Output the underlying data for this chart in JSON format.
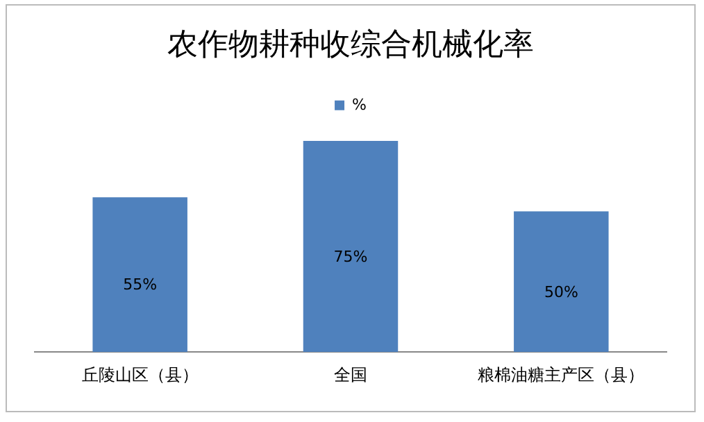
{
  "chart_data": {
    "type": "bar",
    "title": "农作物耕种收综合机械化率",
    "categories": [
      "丘陵山区（县）",
      "全国",
      "粮棉油糖主产区（县）"
    ],
    "series": [
      {
        "name": "%",
        "color": "#4f81bd",
        "values": [
          55,
          75,
          50
        ],
        "value_labels": [
          "55%",
          "75%",
          "50%"
        ]
      }
    ],
    "legend": "top",
    "grid": false
  }
}
